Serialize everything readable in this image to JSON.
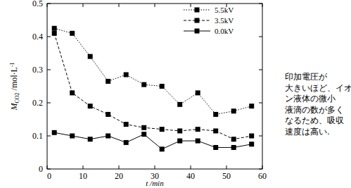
{
  "chart_data": {
    "type": "line",
    "x_label": "t /min",
    "y_label": [
      "M",
      "CO2",
      " /mol·L",
      "-1"
    ],
    "annotation": [
      "印加電圧が",
      "大きいほど、イオ",
      "ン液体の微小",
      "液滴の数が多く",
      "なるため、吸収",
      "速度は高い."
    ],
    "x": [
      2,
      7,
      12,
      17,
      22,
      27,
      32,
      37,
      42,
      47,
      52,
      57
    ],
    "series": [
      {
        "name": "5.5kV",
        "color": "#000000",
        "marker": "square",
        "line_style": "dotted",
        "values": [
          0.425,
          0.41,
          0.34,
          0.265,
          0.285,
          0.255,
          0.25,
          0.195,
          0.23,
          0.165,
          0.175,
          0.19
        ]
      },
      {
        "name": "3.5kV",
        "color": "#000000",
        "marker": "square",
        "line_style": "dashed",
        "values": [
          0.41,
          0.23,
          0.19,
          0.165,
          0.135,
          0.125,
          0.12,
          0.115,
          0.12,
          0.115,
          0.09,
          0.1
        ]
      },
      {
        "name": "0.0kV",
        "color": "#000000",
        "marker": "square",
        "line_style": "solid",
        "values": [
          0.11,
          0.1,
          0.09,
          0.1,
          0.08,
          0.105,
          0.06,
          0.085,
          0.085,
          0.065,
          0.065,
          0.075
        ]
      }
    ],
    "xlim": [
      0,
      60
    ],
    "xticks": [
      0,
      10,
      20,
      30,
      40,
      50,
      60
    ],
    "ylim": [
      0,
      0.5
    ],
    "yticks": [
      0,
      0.1,
      0.2,
      0.3,
      0.4,
      0.5
    ],
    "legend": "upper-right",
    "grid": false
  }
}
